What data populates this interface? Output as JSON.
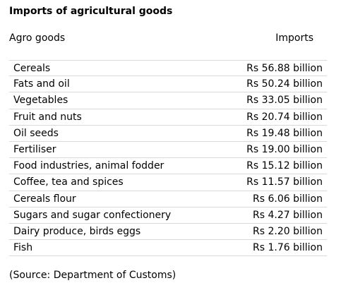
{
  "title": "Imports of agricultural goods",
  "headers": {
    "goods": "Agro goods",
    "imports": "Imports"
  },
  "rows": [
    {
      "item": "Cereals",
      "value": "Rs 56.88 billion"
    },
    {
      "item": "Fats and oil",
      "value": "Rs 50.24 billion"
    },
    {
      "item": "Vegetables",
      "value": "Rs 33.05 billion"
    },
    {
      "item": "Fruit and nuts",
      "value": "Rs 20.74 billion"
    },
    {
      "item": "Oil seeds",
      "value": "Rs 19.48 billion"
    },
    {
      "item": "Fertiliser",
      "value": "Rs 19.00 billion"
    },
    {
      "item": "Food industries, animal fodder",
      "value": "Rs 15.12 billion"
    },
    {
      "item": "Coffee, tea and spices",
      "value": "Rs 11.57 billion"
    },
    {
      "item": "Cereals flour",
      "value": "Rs 6.06 billion"
    },
    {
      "item": "Sugars and sugar confectionery",
      "value": "Rs 4.27 billion"
    },
    {
      "item": "Dairy produce, birds eggs",
      "value": "Rs 2.20 billion"
    },
    {
      "item": "Fish",
      "value": "Rs 1.76 billion"
    }
  ],
  "source": "(Source: Department of Customs)"
}
